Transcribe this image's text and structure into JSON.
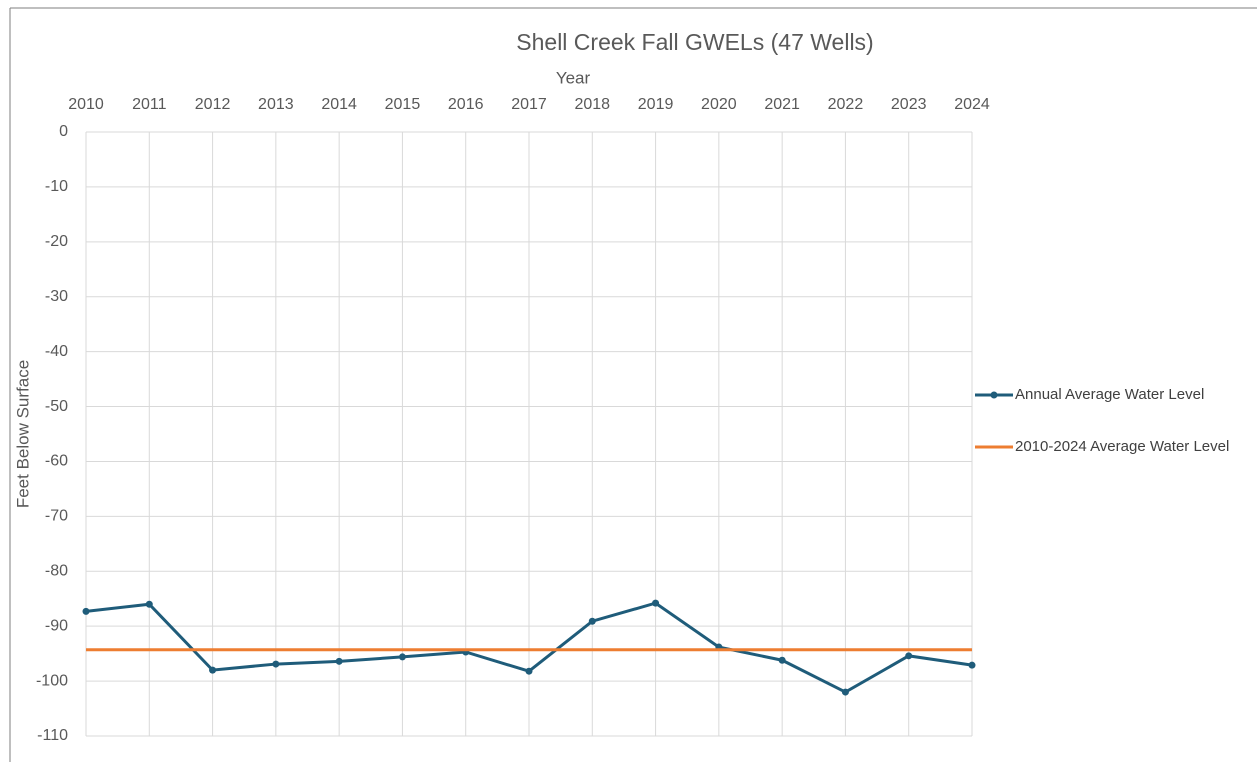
{
  "chart_data": {
    "type": "line",
    "title": "Shell Creek Fall GWELs (47 Wells)",
    "x_label": "Year",
    "y_label": "Feet Below Surface",
    "x": [
      2010,
      2011,
      2012,
      2013,
      2014,
      2015,
      2016,
      2017,
      2018,
      2019,
      2020,
      2021,
      2022,
      2023,
      2024
    ],
    "xlim": [
      2010,
      2024
    ],
    "xticks": [
      2010,
      2011,
      2012,
      2013,
      2014,
      2015,
      2016,
      2017,
      2018,
      2019,
      2020,
      2021,
      2022,
      2023,
      2024
    ],
    "ylim": [
      -110,
      0
    ],
    "yticks": [
      0,
      -10,
      -20,
      -30,
      -40,
      -50,
      -60,
      -70,
      -80,
      -90,
      -100,
      -110
    ],
    "grid": true,
    "legend": "right",
    "series": [
      {
        "name": "Annual Average Water Level",
        "color": "#1f5c7a",
        "markers": true,
        "values": [
          -87.3,
          -86.0,
          -98.0,
          -96.9,
          -96.4,
          -95.6,
          -94.7,
          -98.2,
          -89.1,
          -85.8,
          -93.8,
          -96.2,
          -102.0,
          -95.4,
          -97.1
        ]
      },
      {
        "name": "2010-2024 Average Water Level",
        "color": "#ed7d31",
        "markers": false,
        "values": [
          -94.3,
          -94.3,
          -94.3,
          -94.3,
          -94.3,
          -94.3,
          -94.3,
          -94.3,
          -94.3,
          -94.3,
          -94.3,
          -94.3,
          -94.3,
          -94.3,
          -94.3
        ]
      }
    ]
  }
}
